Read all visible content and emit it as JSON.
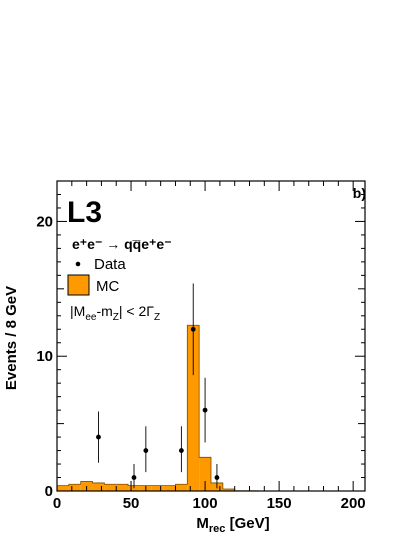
{
  "chart_data": {
    "type": "bar",
    "panel_label": "b)",
    "experiment": "L3",
    "process": "e⁺e⁻ → qq̅e⁺e⁻",
    "legend": {
      "placement": "top-left",
      "entries": [
        {
          "label": "Data",
          "marker": "dot"
        },
        {
          "label": "MC",
          "marker": "filled-box",
          "color": "#ff9900"
        }
      ]
    },
    "selection_cut": "|M_ee - m_Z| < 2Γ_Z",
    "xlabel": "M_rec [GeV]",
    "ylabel": "Events / 8 GeV",
    "xlim": [
      0,
      208
    ],
    "ylim": [
      0,
      23
    ],
    "xticks": [
      "0",
      "50",
      "100",
      "150",
      "200"
    ],
    "yticks": [
      "0",
      "10",
      "20"
    ],
    "mc_histogram": {
      "name": "MC",
      "color": "#ff9900",
      "bin_edges": [
        0,
        8,
        16,
        24,
        32,
        40,
        48,
        56,
        64,
        72,
        80,
        88,
        96,
        104,
        112,
        120,
        128,
        136,
        144,
        152,
        160,
        168,
        176,
        184,
        192,
        200,
        208
      ],
      "values": [
        0.4,
        0.5,
        0.7,
        0.6,
        0.5,
        0.5,
        0.4,
        0.4,
        0.4,
        0.4,
        0.5,
        12.3,
        2.5,
        0.6,
        0.15,
        0.02,
        0.02,
        0,
        0,
        0,
        0,
        0,
        0,
        0,
        0,
        0
      ]
    },
    "data_points": {
      "name": "Data",
      "x": [
        28,
        52,
        60,
        84,
        92,
        100,
        108
      ],
      "y": [
        4,
        1,
        3,
        3,
        12,
        6,
        1
      ],
      "yerr_low": [
        1.9,
        0.8,
        1.6,
        1.6,
        3.4,
        2.4,
        0.8
      ],
      "yerr_high": [
        1.9,
        1.0,
        1.8,
        1.8,
        3.4,
        2.4,
        1.0
      ]
    }
  }
}
